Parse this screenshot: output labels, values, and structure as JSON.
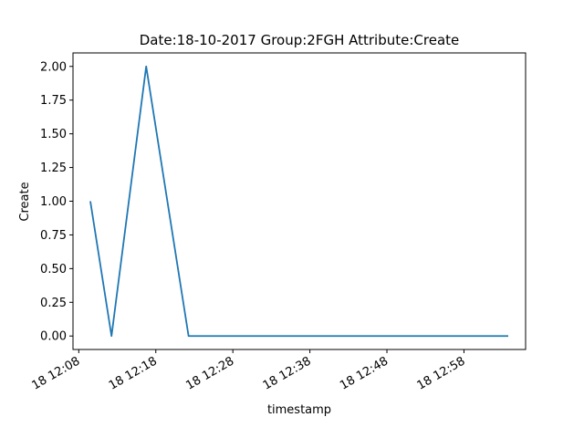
{
  "chart_data": {
    "type": "line",
    "title": "Date:18-10-2017  Group:2FGH Attribute:Create",
    "xlabel": "timestamp",
    "ylabel": "Create",
    "x_ticks": [
      "18 12:08",
      "18 12:18",
      "18 12:28",
      "18 12:38",
      "18 12:48",
      "18 12:58"
    ],
    "y_ticks": [
      "0.00",
      "0.25",
      "0.50",
      "0.75",
      "1.00",
      "1.25",
      "1.50",
      "1.75",
      "2.00"
    ],
    "ylim": [
      -0.1,
      2.1
    ],
    "series": [
      {
        "x": [
          "2017-10-18 12:09:30",
          "2017-10-18 12:12:15",
          "2017-10-18 12:16:45",
          "2017-10-18 12:22:15",
          "2017-10-18 13:03:45"
        ],
        "values": [
          1,
          0,
          2,
          0,
          0
        ],
        "color": "#1f77b4"
      }
    ],
    "grid": false,
    "legend": "none"
  }
}
